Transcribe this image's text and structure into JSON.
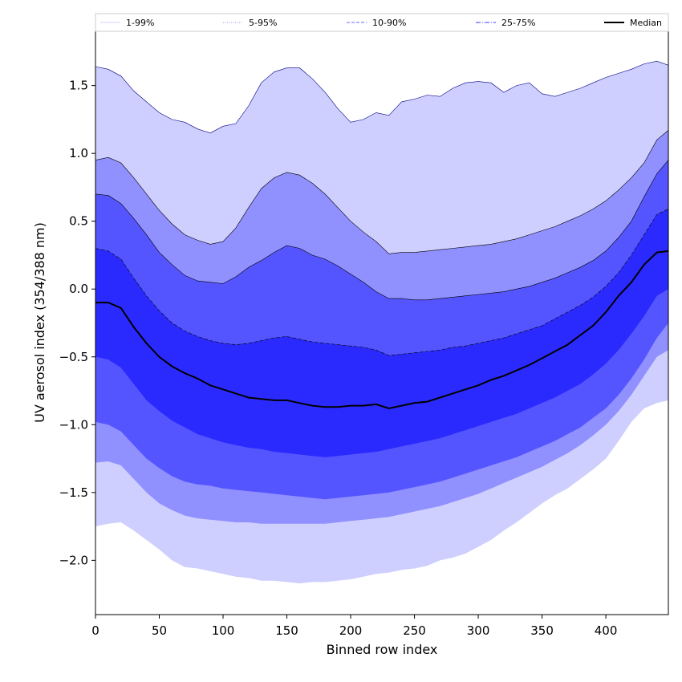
{
  "chart_data": {
    "type": "area",
    "title": "",
    "xlabel": "Binned row index",
    "ylabel": "UV aerosol index (354/388 nm)",
    "xlim": [
      0,
      449
    ],
    "ylim": [
      -2.4,
      1.9
    ],
    "x_ticks": [
      0,
      50,
      100,
      150,
      200,
      250,
      300,
      350,
      400
    ],
    "y_ticks": [
      -2.0,
      -1.5,
      -1.0,
      -0.5,
      0.0,
      0.5,
      1.0,
      1.5
    ],
    "y_tick_labels": [
      "−2.0",
      "−1.5",
      "−1.0",
      "−0.5",
      "0.0",
      "0.5",
      "1.0",
      "1.5"
    ],
    "grid": false,
    "legend_position": "top",
    "x": [
      0,
      10,
      20,
      30,
      40,
      50,
      60,
      70,
      80,
      90,
      100,
      110,
      120,
      130,
      140,
      150,
      160,
      170,
      180,
      190,
      200,
      210,
      220,
      230,
      240,
      250,
      260,
      270,
      280,
      290,
      300,
      310,
      320,
      330,
      340,
      350,
      360,
      370,
      380,
      390,
      400,
      410,
      420,
      430,
      440,
      449
    ],
    "bands": [
      {
        "name": "1-99%",
        "color": "#ceceff",
        "line_color": "#ceceff",
        "upper": [
          1.64,
          1.62,
          1.57,
          1.46,
          1.38,
          1.3,
          1.25,
          1.23,
          1.18,
          1.15,
          1.2,
          1.22,
          1.35,
          1.52,
          1.6,
          1.63,
          1.63,
          1.55,
          1.45,
          1.33,
          1.23,
          1.25,
          1.3,
          1.28,
          1.38,
          1.4,
          1.43,
          1.42,
          1.48,
          1.52,
          1.53,
          1.52,
          1.45,
          1.5,
          1.52,
          1.44,
          1.42,
          1.45,
          1.48,
          1.52,
          1.56,
          1.59,
          1.62,
          1.66,
          1.68,
          1.65
        ],
        "lower": [
          -1.75,
          -1.73,
          -1.72,
          -1.78,
          -1.85,
          -1.92,
          -2.0,
          -2.05,
          -2.06,
          -2.08,
          -2.1,
          -2.12,
          -2.13,
          -2.15,
          -2.15,
          -2.16,
          -2.17,
          -2.16,
          -2.16,
          -2.15,
          -2.14,
          -2.12,
          -2.1,
          -2.09,
          -2.07,
          -2.06,
          -2.04,
          -2.0,
          -1.98,
          -1.95,
          -1.9,
          -1.85,
          -1.78,
          -1.72,
          -1.65,
          -1.58,
          -1.52,
          -1.47,
          -1.4,
          -1.33,
          -1.25,
          -1.12,
          -0.98,
          -0.88,
          -0.84,
          -0.82
        ]
      },
      {
        "name": "5-95%",
        "color": "#9090ff",
        "line_color": "#9090ff",
        "upper": [
          0.95,
          0.97,
          0.93,
          0.82,
          0.7,
          0.58,
          0.48,
          0.4,
          0.36,
          0.33,
          0.35,
          0.45,
          0.6,
          0.74,
          0.82,
          0.86,
          0.84,
          0.78,
          0.7,
          0.6,
          0.5,
          0.42,
          0.35,
          0.26,
          0.27,
          0.27,
          0.28,
          0.29,
          0.3,
          0.31,
          0.32,
          0.33,
          0.35,
          0.37,
          0.4,
          0.43,
          0.46,
          0.5,
          0.54,
          0.59,
          0.65,
          0.73,
          0.82,
          0.93,
          1.1,
          1.17
        ]
      },
      {
        "name": "10-90%",
        "color": "#5555ff",
        "line_color": "#5555ff",
        "upper": [
          0.7,
          0.69,
          0.63,
          0.52,
          0.4,
          0.27,
          0.18,
          0.1,
          0.06,
          0.05,
          0.04,
          0.09,
          0.16,
          0.21,
          0.27,
          0.32,
          0.3,
          0.25,
          0.22,
          0.17,
          0.11,
          0.05,
          -0.02,
          -0.07,
          -0.07,
          -0.08,
          -0.08,
          -0.07,
          -0.06,
          -0.05,
          -0.04,
          -0.03,
          -0.02,
          0.0,
          0.02,
          0.05,
          0.08,
          0.12,
          0.16,
          0.21,
          0.28,
          0.38,
          0.5,
          0.68,
          0.85,
          0.95
        ]
      },
      {
        "name": "25-75%",
        "color": "#2a2aff",
        "line_color": "#2a2aff",
        "upper": [
          0.3,
          0.28,
          0.22,
          0.08,
          -0.05,
          -0.16,
          -0.25,
          -0.31,
          -0.35,
          -0.38,
          -0.4,
          -0.41,
          -0.4,
          -0.38,
          -0.36,
          -0.35,
          -0.37,
          -0.39,
          -0.4,
          -0.41,
          -0.42,
          -0.43,
          -0.45,
          -0.49,
          -0.48,
          -0.47,
          -0.46,
          -0.45,
          -0.43,
          -0.42,
          -0.4,
          -0.38,
          -0.36,
          -0.33,
          -0.3,
          -0.27,
          -0.22,
          -0.17,
          -0.12,
          -0.06,
          0.02,
          0.12,
          0.25,
          0.4,
          0.55,
          0.59
        ],
        "lower": [
          -0.5,
          -0.52,
          -0.58,
          -0.7,
          -0.82,
          -0.9,
          -0.97,
          -1.02,
          -1.07,
          -1.1,
          -1.13,
          -1.15,
          -1.17,
          -1.18,
          -1.2,
          -1.21,
          -1.22,
          -1.23,
          -1.24,
          -1.23,
          -1.22,
          -1.21,
          -1.2,
          -1.18,
          -1.16,
          -1.14,
          -1.12,
          -1.1,
          -1.07,
          -1.04,
          -1.01,
          -0.98,
          -0.95,
          -0.92,
          -0.88,
          -0.84,
          -0.8,
          -0.75,
          -0.7,
          -0.63,
          -0.55,
          -0.45,
          -0.33,
          -0.2,
          -0.05,
          0.0
        ]
      }
    ],
    "inner_lowers": [
      {
        "name": "10-90%",
        "values": [
          -0.98,
          -1.0,
          -1.05,
          -1.15,
          -1.25,
          -1.32,
          -1.38,
          -1.42,
          -1.44,
          -1.45,
          -1.47,
          -1.48,
          -1.49,
          -1.5,
          -1.51,
          -1.52,
          -1.53,
          -1.54,
          -1.55,
          -1.54,
          -1.53,
          -1.52,
          -1.51,
          -1.5,
          -1.48,
          -1.46,
          -1.44,
          -1.42,
          -1.39,
          -1.36,
          -1.33,
          -1.3,
          -1.27,
          -1.24,
          -1.2,
          -1.16,
          -1.12,
          -1.07,
          -1.02,
          -0.95,
          -0.88,
          -0.78,
          -0.66,
          -0.52,
          -0.36,
          -0.25
        ]
      },
      {
        "name": "5-95%",
        "values": [
          -1.28,
          -1.27,
          -1.3,
          -1.4,
          -1.5,
          -1.58,
          -1.63,
          -1.67,
          -1.69,
          -1.7,
          -1.71,
          -1.72,
          -1.72,
          -1.73,
          -1.73,
          -1.73,
          -1.73,
          -1.73,
          -1.73,
          -1.72,
          -1.71,
          -1.7,
          -1.69,
          -1.68,
          -1.66,
          -1.64,
          -1.62,
          -1.6,
          -1.57,
          -1.54,
          -1.51,
          -1.47,
          -1.43,
          -1.39,
          -1.35,
          -1.31,
          -1.26,
          -1.21,
          -1.15,
          -1.08,
          -1.0,
          -0.9,
          -0.78,
          -0.64,
          -0.5,
          -0.45
        ]
      }
    ],
    "series": [
      {
        "name": "Median",
        "color": "#000000",
        "values": [
          -0.1,
          -0.1,
          -0.14,
          -0.28,
          -0.4,
          -0.5,
          -0.57,
          -0.62,
          -0.66,
          -0.71,
          -0.74,
          -0.77,
          -0.8,
          -0.81,
          -0.82,
          -0.82,
          -0.84,
          -0.86,
          -0.87,
          -0.87,
          -0.86,
          -0.86,
          -0.85,
          -0.88,
          -0.86,
          -0.84,
          -0.83,
          -0.8,
          -0.77,
          -0.74,
          -0.71,
          -0.67,
          -0.64,
          -0.6,
          -0.56,
          -0.51,
          -0.46,
          -0.41,
          -0.34,
          -0.27,
          -0.17,
          -0.05,
          0.05,
          0.18,
          0.27,
          0.28
        ]
      }
    ],
    "legend": [
      {
        "label": "1-99%",
        "color": "#cfcfff",
        "style": "solid"
      },
      {
        "label": "5-95%",
        "color": "#9a9aff",
        "style": "dotted"
      },
      {
        "label": "10-90%",
        "color": "#6666ff",
        "style": "dashed"
      },
      {
        "label": "25-75%",
        "color": "#3a3aff",
        "style": "dashdot"
      },
      {
        "label": "Median",
        "color": "#000000",
        "style": "thick"
      }
    ]
  }
}
